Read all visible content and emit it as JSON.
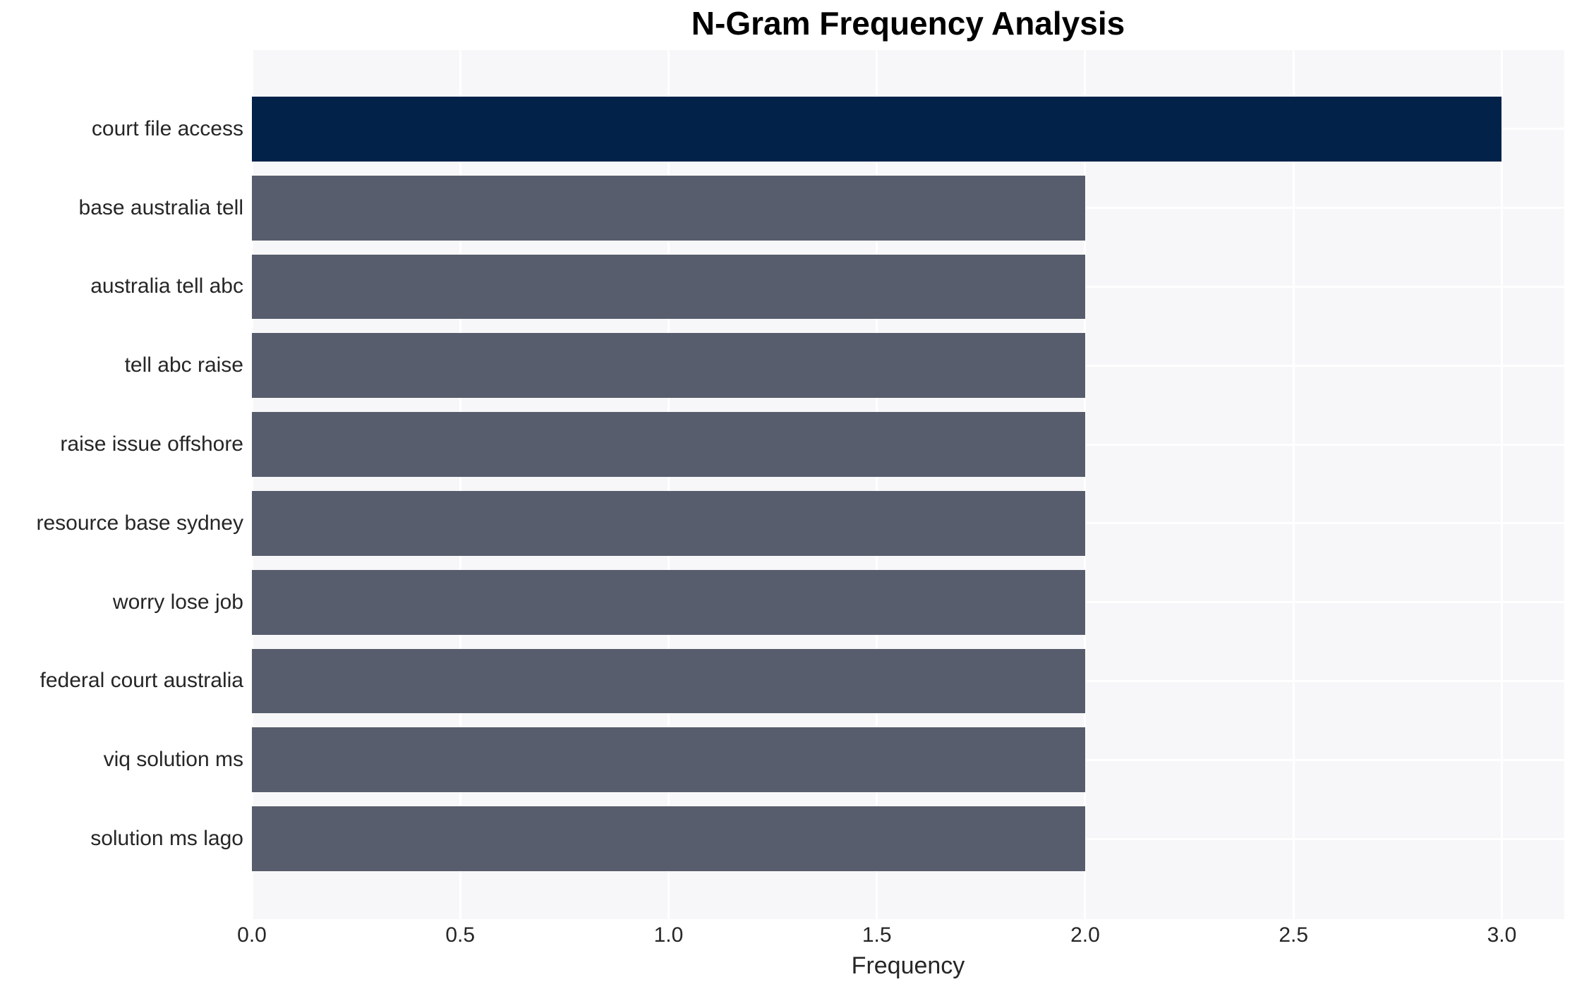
{
  "chart_data": {
    "type": "bar",
    "orientation": "horizontal",
    "title": "N-Gram Frequency Analysis",
    "xlabel": "Frequency",
    "ylabel": "",
    "categories": [
      "court file access",
      "base australia tell",
      "australia tell abc",
      "tell abc raise",
      "raise issue offshore",
      "resource base sydney",
      "worry lose job",
      "federal court australia",
      "viq solution ms",
      "solution ms lago"
    ],
    "values": [
      3,
      2,
      2,
      2,
      2,
      2,
      2,
      2,
      2,
      2
    ],
    "bar_colors": [
      "#02224a",
      "#575d6c",
      "#575d6c",
      "#575d6c",
      "#575d6c",
      "#575d6c",
      "#575d6c",
      "#575d6c",
      "#575d6c",
      "#575d6c"
    ],
    "xlim": [
      0,
      3.15
    ],
    "xtick_values": [
      0,
      0.5,
      1.0,
      1.5,
      2.0,
      2.5,
      3.0
    ],
    "xtick_labels": [
      "0.0",
      "0.5",
      "1.0",
      "1.5",
      "2.0",
      "2.5",
      "3.0"
    ],
    "grid": true,
    "legend": null,
    "colors": {
      "panel_background": "#f7f7f9",
      "gridline": "#ffffff",
      "highlight_bar": "#02224a",
      "default_bar": "#575d6c",
      "text": "#262626",
      "title_text": "#000000"
    }
  }
}
